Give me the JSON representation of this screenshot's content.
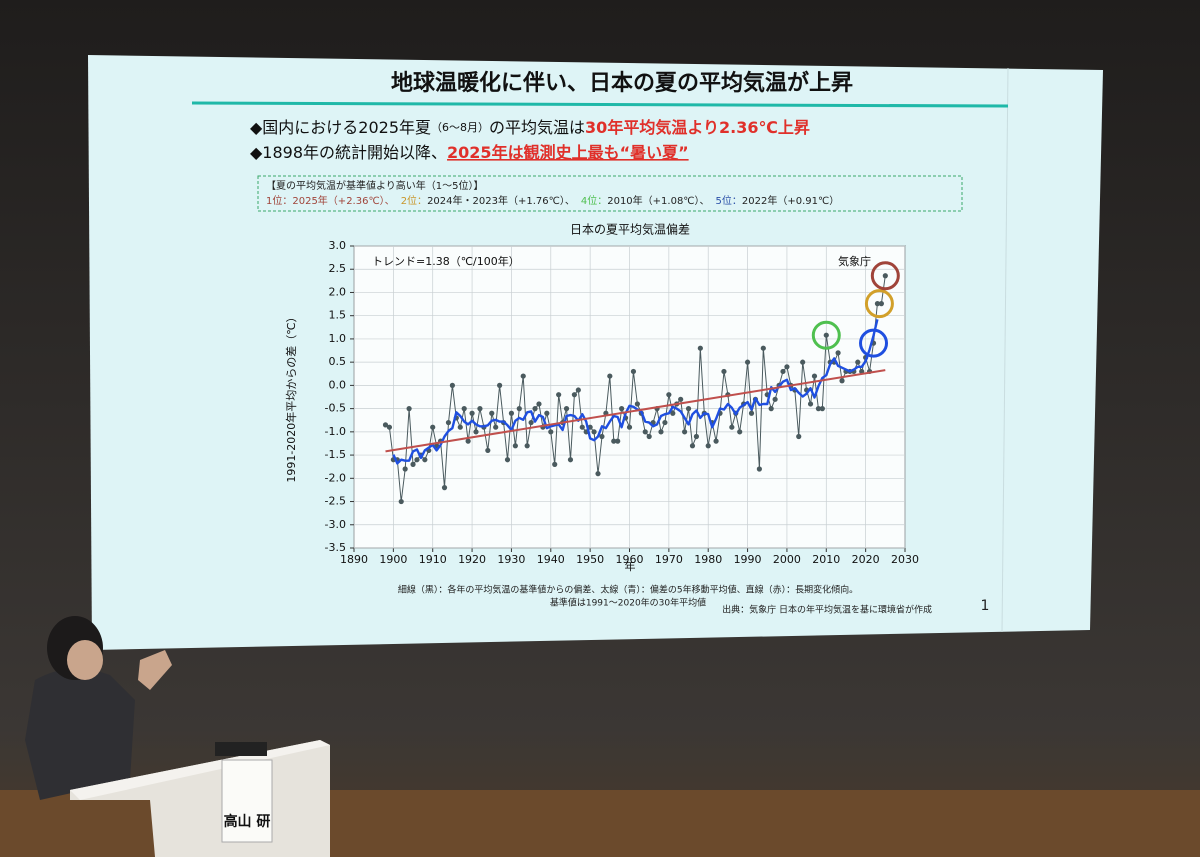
{
  "slide": {
    "title": "地球温暖化に伴い、日本の夏の平均気温が上昇",
    "bullets": [
      [
        "◆国内における2025年夏",
        "（6～8月）",
        "の平均気温は",
        "30年平均気温より2.36℃上昇"
      ],
      [
        "◆1898年の統計開始以降、",
        "2025年は観測史上最も“暑い夏”"
      ]
    ],
    "ranking": {
      "heading": "【夏の平均気温が基準値より高い年（1～5位）】",
      "parts": [
        "1位：2025年（+2.36℃）、",
        "2位：",
        "2024年・2023年（+1.76℃）、",
        "4位：",
        "2010年（+1.08℃）、",
        "5位：",
        "2022年（+0.91℃）"
      ]
    },
    "notes": [
      "細線（黒）：各年の平均気温の基準値からの偏差、太線（青）：偏差の5年移動平均値、直線（赤）：長期変化傾向。",
      "基準値は1991～2020年の30年平均値"
    ],
    "source": "出典：気象庁 日本の年平均気温を基に環境省が作成",
    "page_number": "1"
  },
  "name_card": "高山 研",
  "chart_data": {
    "type": "line",
    "title": "日本の夏平均気温偏差",
    "annotations": [
      "トレンド=1.38（℃/100年）",
      "気象庁"
    ],
    "x_label": "年",
    "y_label": "1991-2020年平均からの差（℃）",
    "x": [
      1898,
      1899,
      1900,
      1901,
      1902,
      1903,
      1904,
      1905,
      1906,
      1907,
      1908,
      1909,
      1910,
      1911,
      1912,
      1913,
      1914,
      1915,
      1916,
      1917,
      1918,
      1919,
      1920,
      1921,
      1922,
      1923,
      1924,
      1925,
      1926,
      1927,
      1928,
      1929,
      1930,
      1931,
      1932,
      1933,
      1934,
      1935,
      1936,
      1937,
      1938,
      1939,
      1940,
      1941,
      1942,
      1943,
      1944,
      1945,
      1946,
      1947,
      1948,
      1949,
      1950,
      1951,
      1952,
      1953,
      1954,
      1955,
      1956,
      1957,
      1958,
      1959,
      1960,
      1961,
      1962,
      1963,
      1964,
      1965,
      1966,
      1967,
      1968,
      1969,
      1970,
      1971,
      1972,
      1973,
      1974,
      1975,
      1976,
      1977,
      1978,
      1979,
      1980,
      1981,
      1982,
      1983,
      1984,
      1985,
      1986,
      1987,
      1988,
      1989,
      1990,
      1991,
      1992,
      1993,
      1994,
      1995,
      1996,
      1997,
      1998,
      1999,
      2000,
      2001,
      2002,
      2003,
      2004,
      2005,
      2006,
      2007,
      2008,
      2009,
      2010,
      2011,
      2012,
      2013,
      2014,
      2015,
      2016,
      2017,
      2018,
      2019,
      2020,
      2021,
      2022,
      2023,
      2024,
      2025
    ],
    "series": [
      {
        "color": "#4a5a5e",
        "values": [
          -0.85,
          -0.9,
          -1.6,
          -1.6,
          -2.5,
          -1.8,
          -0.5,
          -1.7,
          -1.6,
          -1.5,
          -1.6,
          -1.4,
          -0.9,
          -1.3,
          -1.2,
          -2.2,
          -0.8,
          0.0,
          -0.7,
          -0.9,
          -0.5,
          -1.2,
          -0.6,
          -1.0,
          -0.5,
          -0.9,
          -1.4,
          -0.6,
          -0.9,
          0.0,
          -0.8,
          -1.6,
          -0.6,
          -1.3,
          -0.5,
          0.2,
          -1.3,
          -0.8,
          -0.5,
          -0.4,
          -0.9,
          -0.6,
          -1.0,
          -1.7,
          -0.2,
          -0.8,
          -0.5,
          -1.6,
          -0.2,
          -0.1,
          -0.9,
          -1.0,
          -0.9,
          -1.0,
          -1.9,
          -1.1,
          -0.6,
          0.2,
          -1.2,
          -1.2,
          -0.5,
          -0.7,
          -0.9,
          0.3,
          -0.4,
          -0.6,
          -1.0,
          -1.1,
          -0.8,
          -0.5,
          -1.0,
          -0.8,
          -0.2,
          -0.6,
          -0.4,
          -0.3,
          -1.0,
          -0.5,
          -1.3,
          -1.1,
          0.8,
          -0.6,
          -1.3,
          -0.8,
          -1.2,
          -0.6,
          0.3,
          -0.2,
          -0.9,
          -0.6,
          -1.0,
          -0.4,
          0.5,
          -0.6,
          -0.3,
          -1.8,
          0.8,
          -0.2,
          -0.5,
          -0.3,
          0.0,
          0.3,
          0.4,
          0.0,
          -0.1,
          -1.1,
          0.5,
          -0.1,
          -0.4,
          0.2,
          -0.5,
          -0.5,
          1.08,
          0.5,
          0.5,
          0.7,
          0.1,
          0.3,
          0.3,
          0.3,
          0.5,
          0.3,
          0.6,
          0.3,
          0.91,
          1.76,
          1.76,
          2.36
        ]
      },
      {
        "color": "#1f4fe0",
        "values": [
          null,
          null,
          -1.49,
          -1.68,
          -1.6,
          -1.62,
          -1.62,
          -1.42,
          -1.38,
          -1.56,
          -1.4,
          -1.34,
          -1.28,
          -1.4,
          -1.28,
          -1.1,
          -0.98,
          -0.92,
          -0.58,
          -0.66,
          -0.78,
          -0.84,
          -0.76,
          -0.84,
          -0.88,
          -0.88,
          -0.86,
          -0.76,
          -0.74,
          -0.78,
          -0.78,
          -0.86,
          -0.96,
          -0.76,
          -0.7,
          -0.74,
          -0.58,
          -0.56,
          -0.78,
          -0.64,
          -0.68,
          -0.92,
          -0.88,
          -0.86,
          -0.84,
          -0.96,
          -0.66,
          -0.64,
          -0.66,
          -0.76,
          -0.62,
          -0.78,
          -1.14,
          -1.18,
          -1.1,
          -0.88,
          -0.92,
          -0.78,
          -0.66,
          -0.68,
          -0.9,
          -0.6,
          -0.44,
          -0.46,
          -0.52,
          -0.56,
          -0.78,
          -0.8,
          -0.88,
          -0.84,
          -0.66,
          -0.62,
          -0.6,
          -0.46,
          -0.5,
          -0.56,
          -0.7,
          -0.84,
          -0.62,
          -0.54,
          -0.7,
          -0.6,
          -0.62,
          -0.9,
          -0.72,
          -0.5,
          -0.52,
          -0.4,
          -0.48,
          -0.62,
          -0.48,
          -0.42,
          -0.36,
          -0.52,
          -0.28,
          -0.42,
          -0.4,
          -0.4,
          -0.04,
          -0.14,
          -0.02,
          0.08,
          0.12,
          -0.1,
          -0.06,
          -0.16,
          -0.24,
          -0.18,
          -0.06,
          -0.26,
          -0.02,
          0.16,
          0.22,
          0.46,
          0.58,
          0.42,
          0.38,
          0.34,
          0.3,
          0.34,
          0.4,
          0.4,
          0.52,
          0.77,
          1.07,
          1.42,
          null,
          null
        ]
      },
      {
        "color": "#c0504d",
        "x": [
          1898,
          2025
        ],
        "values": [
          -1.42,
          0.33
        ]
      }
    ],
    "xlim": [
      1890,
      2030
    ],
    "xticks": [
      1890,
      1900,
      1910,
      1920,
      1930,
      1940,
      1950,
      1960,
      1970,
      1980,
      1990,
      2000,
      2010,
      2020,
      2030
    ],
    "ylim": [
      -3.5,
      3.0
    ],
    "yticks": [
      -3.5,
      {
        "value": -3,
        "label": "-3.0"
      },
      -2.5,
      {
        "value": -2,
        "label": "-2.0"
      },
      -1.5,
      {
        "value": -1,
        "label": "-1.0"
      },
      -0.5,
      {
        "value": 0,
        "label": "0.0"
      },
      0.5,
      {
        "value": 1,
        "label": "1.0"
      },
      1.5,
      {
        "value": 2,
        "label": "2.0"
      },
      2.5,
      {
        "value": 3,
        "label": "3.0"
      }
    ],
    "grid": true
  }
}
